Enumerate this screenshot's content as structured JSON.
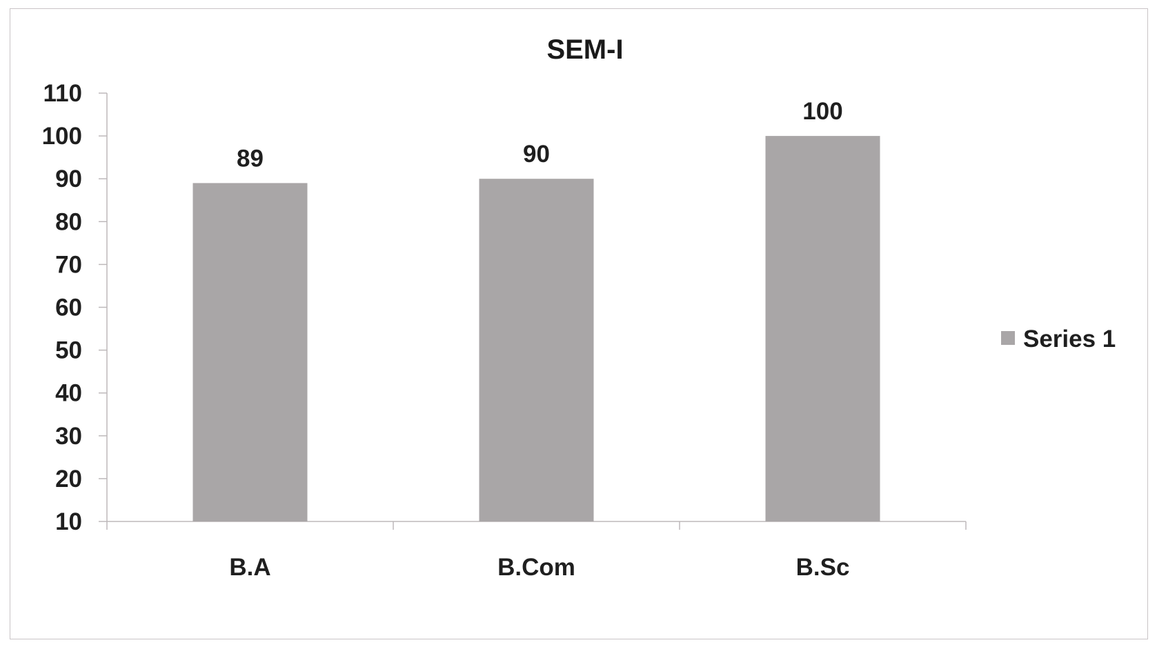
{
  "chart_data": {
    "type": "bar",
    "title": "SEM-I",
    "categories": [
      "B.A",
      "B.Com",
      "B.Sc"
    ],
    "series": [
      {
        "name": "Series 1",
        "values": [
          89,
          90,
          100
        ]
      }
    ],
    "data_labels": [
      "89",
      "90",
      "100"
    ],
    "ylim": [
      10,
      110
    ],
    "y_ticks": [
      10,
      20,
      30,
      40,
      50,
      60,
      70,
      80,
      90,
      100,
      110
    ],
    "xlabel": "",
    "ylabel": "",
    "grid": false,
    "legend_position": "right",
    "colors": {
      "bar": "#a9a6a7",
      "axis": "#bdb8ba",
      "text": "#1f1f1f",
      "background": "#ffffff"
    }
  }
}
